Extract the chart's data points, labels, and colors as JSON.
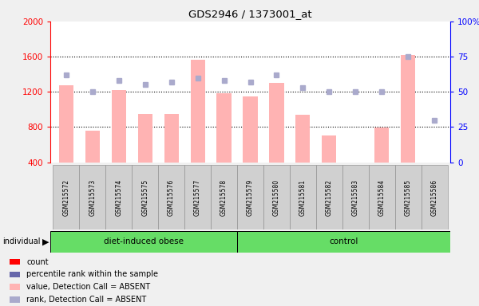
{
  "title": "GDS2946 / 1373001_at",
  "samples": [
    "GSM215572",
    "GSM215573",
    "GSM215574",
    "GSM215575",
    "GSM215576",
    "GSM215577",
    "GSM215578",
    "GSM215579",
    "GSM215580",
    "GSM215581",
    "GSM215582",
    "GSM215583",
    "GSM215584",
    "GSM215585",
    "GSM215586"
  ],
  "groups": [
    "diet-induced obese",
    "diet-induced obese",
    "diet-induced obese",
    "diet-induced obese",
    "diet-induced obese",
    "diet-induced obese",
    "diet-induced obese",
    "control",
    "control",
    "control",
    "control",
    "control",
    "control",
    "control",
    "control"
  ],
  "bar_values": [
    1270,
    755,
    1220,
    950,
    950,
    1560,
    1180,
    1150,
    1300,
    940,
    700,
    380,
    790,
    1620,
    null
  ],
  "dot_pct": [
    62,
    50,
    58,
    55,
    57,
    60,
    58,
    57,
    62,
    53,
    50,
    50,
    50,
    75,
    30
  ],
  "ylim_left": [
    400,
    2000
  ],
  "ylim_right": [
    0,
    100
  ],
  "left_ticks": [
    400,
    800,
    1200,
    1600,
    2000
  ],
  "right_ticks": [
    0,
    25,
    50,
    75,
    100
  ],
  "right_tick_labels": [
    "0",
    "25",
    "50",
    "75",
    "100%"
  ],
  "grid_lines": [
    800,
    1200,
    1600
  ],
  "bar_color": "#FFB3B3",
  "dot_color": "#AAAACC",
  "plot_bg_color": "white",
  "fig_bg_color": "#F0F0F0",
  "sample_bg_color": "#C8C8C8",
  "group_color": "#66DD66",
  "left_axis_color": "red",
  "right_axis_color": "blue",
  "obese_count": 7,
  "control_count": 8,
  "legend_colors": [
    "red",
    "#6666AA",
    "#FFB3B3",
    "#AAAACC"
  ],
  "legend_labels": [
    "count",
    "percentile rank within the sample",
    "value, Detection Call = ABSENT",
    "rank, Detection Call = ABSENT"
  ]
}
